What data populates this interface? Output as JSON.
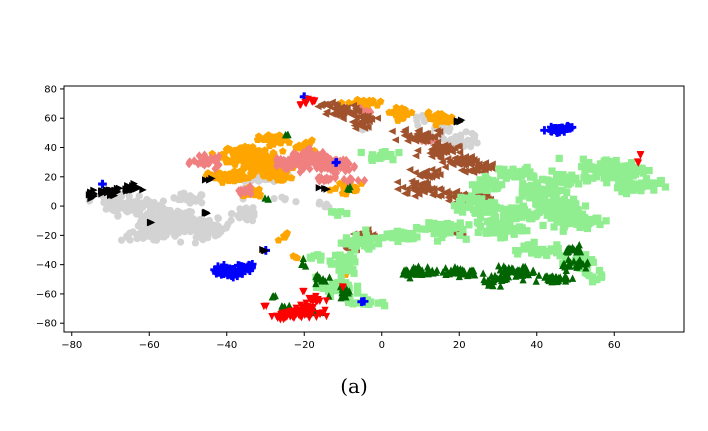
{
  "caption": "(a)",
  "chart_data": {
    "type": "scatter",
    "title": "",
    "xlabel": "",
    "ylabel": "",
    "xlim": [
      -82,
      78
    ],
    "ylim": [
      -86,
      82
    ],
    "xticks": [
      -80,
      -60,
      -40,
      -20,
      0,
      20,
      40,
      60
    ],
    "yticks": [
      -80,
      -60,
      -40,
      -20,
      0,
      20,
      40,
      60,
      80
    ],
    "grid": false,
    "legend": "none",
    "clusters": [
      {
        "color": "#d3d3d3",
        "marker": "circle",
        "centers": [
          [
            -55,
            -10
          ],
          [
            -65,
            0
          ],
          [
            -45,
            -15
          ],
          [
            -60,
            -20
          ],
          [
            -35,
            -5
          ],
          [
            -70,
            5
          ],
          [
            -50,
            5
          ],
          [
            -30,
            20
          ],
          [
            20,
            45
          ],
          [
            15,
            52
          ],
          [
            -5,
            55
          ],
          [
            10,
            60
          ],
          [
            -25,
            5
          ],
          [
            -15,
            0
          ]
        ],
        "spread": [
          [
            6,
            7
          ],
          [
            5,
            5
          ],
          [
            5,
            5
          ],
          [
            6,
            3
          ],
          [
            3,
            5
          ],
          [
            3,
            3
          ],
          [
            4,
            3
          ],
          [
            4,
            5
          ],
          [
            5,
            4
          ],
          [
            3,
            3
          ],
          [
            2,
            2
          ],
          [
            2,
            2
          ],
          [
            2,
            2
          ],
          [
            2,
            2
          ]
        ],
        "counts": [
          160,
          70,
          70,
          50,
          30,
          25,
          25,
          30,
          40,
          15,
          6,
          6,
          5,
          5
        ]
      },
      {
        "color": "#ffa500",
        "marker": "pentagon",
        "centers": [
          [
            -35,
            35
          ],
          [
            -30,
            25
          ],
          [
            -40,
            20
          ],
          [
            -28,
            45
          ],
          [
            -33,
            10
          ],
          [
            -20,
            40
          ],
          [
            -25,
            20
          ],
          [
            -5,
            70
          ],
          [
            5,
            64
          ],
          [
            15,
            60
          ],
          [
            -8,
            12
          ],
          [
            -25,
            -20
          ],
          [
            -10,
            -45
          ],
          [
            -22,
            -35
          ]
        ],
        "spread": [
          [
            5,
            5
          ],
          [
            5,
            5
          ],
          [
            4,
            3
          ],
          [
            3,
            3
          ],
          [
            2,
            4
          ],
          [
            2,
            4
          ],
          [
            2,
            2
          ],
          [
            3,
            2
          ],
          [
            3,
            3
          ],
          [
            3,
            3
          ],
          [
            4,
            4
          ],
          [
            2,
            2
          ],
          [
            1,
            2
          ],
          [
            1,
            1
          ]
        ],
        "counts": [
          170,
          110,
          50,
          35,
          20,
          20,
          10,
          30,
          25,
          25,
          20,
          6,
          4,
          3
        ]
      },
      {
        "color": "#f08080",
        "marker": "diamond",
        "centers": [
          [
            -18,
            32
          ],
          [
            -12,
            28
          ],
          [
            -25,
            30
          ],
          [
            -45,
            30
          ],
          [
            -35,
            10
          ],
          [
            -15,
            18
          ],
          [
            -8,
            18
          ],
          [
            -5,
            65
          ],
          [
            12,
            45
          ]
        ],
        "spread": [
          [
            4,
            5
          ],
          [
            3,
            4
          ],
          [
            3,
            3
          ],
          [
            3,
            3
          ],
          [
            2,
            2
          ],
          [
            3,
            2
          ],
          [
            2,
            2
          ],
          [
            2,
            2
          ],
          [
            2,
            2
          ]
        ],
        "counts": [
          90,
          60,
          40,
          30,
          15,
          15,
          8,
          10,
          10
        ]
      },
      {
        "color": "#a0522d",
        "marker": "triangle-left",
        "centers": [
          [
            -10,
            65
          ],
          [
            -5,
            58
          ],
          [
            10,
            48
          ],
          [
            15,
            38
          ],
          [
            20,
            30
          ],
          [
            25,
            25
          ],
          [
            12,
            22
          ],
          [
            10,
            12
          ],
          [
            25,
            5
          ],
          [
            18,
            8
          ],
          [
            -4,
            -20
          ],
          [
            -8,
            -28
          ],
          [
            12,
            -15
          ],
          [
            20,
            -18
          ],
          [
            -15,
            70
          ]
        ],
        "spread": [
          [
            3,
            4
          ],
          [
            3,
            4
          ],
          [
            4,
            4
          ],
          [
            4,
            4
          ],
          [
            4,
            3
          ],
          [
            3,
            3
          ],
          [
            3,
            3
          ],
          [
            4,
            4
          ],
          [
            3,
            3
          ],
          [
            3,
            3
          ],
          [
            2,
            3
          ],
          [
            2,
            3
          ],
          [
            2,
            2
          ],
          [
            2,
            2
          ],
          [
            2,
            2
          ]
        ],
        "counts": [
          40,
          30,
          45,
          45,
          35,
          25,
          20,
          50,
          20,
          20,
          20,
          15,
          8,
          8,
          8
        ]
      },
      {
        "color": "#90ee90",
        "marker": "square",
        "centers": [
          [
            60,
            25
          ],
          [
            65,
            15
          ],
          [
            45,
            0
          ],
          [
            50,
            -10
          ],
          [
            35,
            -5
          ],
          [
            30,
            -15
          ],
          [
            25,
            0
          ],
          [
            15,
            -15
          ],
          [
            5,
            -20
          ],
          [
            -5,
            -25
          ],
          [
            -10,
            -40
          ],
          [
            -12,
            -55
          ],
          [
            -5,
            -65
          ],
          [
            40,
            -30
          ],
          [
            52,
            -38
          ],
          [
            55,
            -48
          ],
          [
            40,
            10
          ],
          [
            28,
            15
          ],
          [
            35,
            22
          ],
          [
            45,
            18
          ],
          [
            0,
            35
          ],
          [
            -12,
            -5
          ],
          [
            -17,
            -35
          ],
          [
            -8,
            -60
          ]
        ],
        "spread": [
          [
            7,
            6
          ],
          [
            5,
            4
          ],
          [
            6,
            5
          ],
          [
            5,
            4
          ],
          [
            5,
            4
          ],
          [
            5,
            5
          ],
          [
            5,
            5
          ],
          [
            5,
            5
          ],
          [
            4,
            3
          ],
          [
            4,
            4
          ],
          [
            3,
            6
          ],
          [
            4,
            5
          ],
          [
            4,
            3
          ],
          [
            6,
            4
          ],
          [
            4,
            4
          ],
          [
            3,
            3
          ],
          [
            5,
            5
          ],
          [
            4,
            4
          ],
          [
            4,
            4
          ],
          [
            4,
            4
          ],
          [
            3,
            3
          ],
          [
            2,
            2
          ],
          [
            2,
            2
          ],
          [
            2,
            2
          ]
        ],
        "counts": [
          110,
          50,
          60,
          60,
          50,
          50,
          50,
          45,
          40,
          40,
          35,
          30,
          20,
          30,
          20,
          12,
          40,
          30,
          30,
          30,
          20,
          6,
          6,
          6
        ]
      },
      {
        "color": "#006400",
        "marker": "triangle-up",
        "centers": [
          [
            20,
            -45
          ],
          [
            10,
            -45
          ],
          [
            35,
            -45
          ],
          [
            45,
            -50
          ],
          [
            50,
            -40
          ],
          [
            30,
            -50
          ],
          [
            50,
            -30
          ],
          [
            -10,
            -60
          ],
          [
            -18,
            -72
          ],
          [
            -15,
            -50
          ],
          [
            -25,
            -70
          ],
          [
            -28,
            -62
          ],
          [
            -20,
            -40
          ],
          [
            -30,
            5
          ],
          [
            -25,
            48
          ],
          [
            -8,
            12
          ]
        ],
        "spread": [
          [
            4,
            3
          ],
          [
            4,
            3
          ],
          [
            4,
            3
          ],
          [
            3,
            3
          ],
          [
            3,
            3
          ],
          [
            3,
            3
          ],
          [
            2,
            2
          ],
          [
            3,
            3
          ],
          [
            3,
            3
          ],
          [
            2,
            3
          ],
          [
            2,
            2
          ],
          [
            1,
            1
          ],
          [
            1,
            2
          ],
          [
            1,
            1
          ],
          [
            1,
            1
          ],
          [
            1,
            1
          ]
        ],
        "counts": [
          40,
          35,
          40,
          30,
          25,
          25,
          15,
          15,
          12,
          10,
          8,
          4,
          4,
          3,
          3,
          3
        ]
      },
      {
        "color": "#0000ff",
        "marker": "plus",
        "centers": [
          [
            -40,
            -45
          ],
          [
            -35,
            -42
          ],
          [
            45,
            52
          ],
          [
            48,
            54
          ],
          [
            -72,
            15
          ],
          [
            -5,
            -65
          ],
          [
            -30,
            -30
          ],
          [
            -12,
            30
          ],
          [
            -20,
            75
          ]
        ],
        "spread": [
          [
            3,
            3
          ],
          [
            2,
            2
          ],
          [
            2,
            1.5
          ],
          [
            1,
            1
          ],
          [
            0.5,
            0.5
          ],
          [
            1,
            1
          ],
          [
            0.5,
            0.5
          ],
          [
            0.5,
            0.5
          ],
          [
            0.5,
            0.5
          ]
        ],
        "counts": [
          60,
          25,
          25,
          10,
          2,
          3,
          2,
          2,
          2
        ]
      },
      {
        "color": "#ff0000",
        "marker": "triangle-down",
        "centers": [
          [
            -20,
            -72
          ],
          [
            -25,
            -75
          ],
          [
            -17,
            -64
          ],
          [
            -18,
            72
          ],
          [
            -20,
            70
          ],
          [
            67,
            35
          ],
          [
            66,
            30
          ],
          [
            -30,
            -68
          ],
          [
            -20,
            -58
          ],
          [
            -10,
            -55
          ]
        ],
        "spread": [
          [
            3,
            3
          ],
          [
            2,
            2
          ],
          [
            2,
            2
          ],
          [
            1,
            1
          ],
          [
            1,
            1
          ],
          [
            0.5,
            0.5
          ],
          [
            0.5,
            0.5
          ],
          [
            0.5,
            0.5
          ],
          [
            0.5,
            0.5
          ],
          [
            0.5,
            0.5
          ]
        ],
        "counts": [
          50,
          30,
          15,
          8,
          5,
          3,
          2,
          2,
          2,
          2
        ]
      },
      {
        "color": "#000000",
        "marker": "triangle-right",
        "centers": [
          [
            -70,
            10
          ],
          [
            -65,
            12
          ],
          [
            -75,
            8
          ],
          [
            -45,
            -5
          ],
          [
            -60,
            -12
          ],
          [
            -30,
            -30
          ],
          [
            -45,
            18
          ],
          [
            20,
            58
          ],
          [
            -15,
            12
          ]
        ],
        "spread": [
          [
            3,
            2
          ],
          [
            2,
            2
          ],
          [
            1,
            2
          ],
          [
            1,
            1
          ],
          [
            1,
            1
          ],
          [
            1,
            1
          ],
          [
            1,
            1
          ],
          [
            1,
            1
          ],
          [
            1,
            1
          ]
        ],
        "counts": [
          30,
          20,
          10,
          4,
          3,
          3,
          3,
          4,
          3
        ]
      }
    ]
  }
}
